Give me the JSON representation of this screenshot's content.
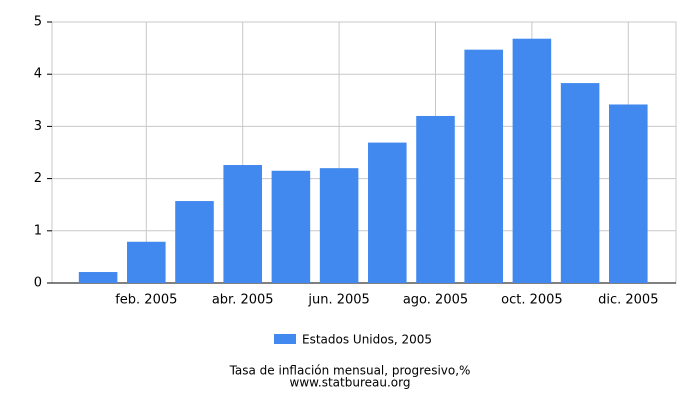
{
  "chart_data": {
    "type": "bar",
    "title": "Tasa de inflación mensual, progresivo,%",
    "source": "www.statbureau.org",
    "categories": [
      null,
      "feb. 2005",
      null,
      "abr. 2005",
      null,
      "jun. 2005",
      null,
      "ago. 2005",
      null,
      "oct. 2005",
      null,
      "dic. 2005"
    ],
    "series": [
      {
        "name": "Estados Unidos, 2005",
        "color": "#4189ee",
        "values": [
          0.21,
          0.79,
          1.57,
          2.26,
          2.15,
          2.2,
          2.69,
          3.2,
          4.47,
          4.68,
          3.83,
          3.42
        ]
      }
    ],
    "ylim": [
      0,
      5
    ],
    "yticks": [
      0,
      1,
      2,
      3,
      4,
      5
    ],
    "grid": true
  }
}
